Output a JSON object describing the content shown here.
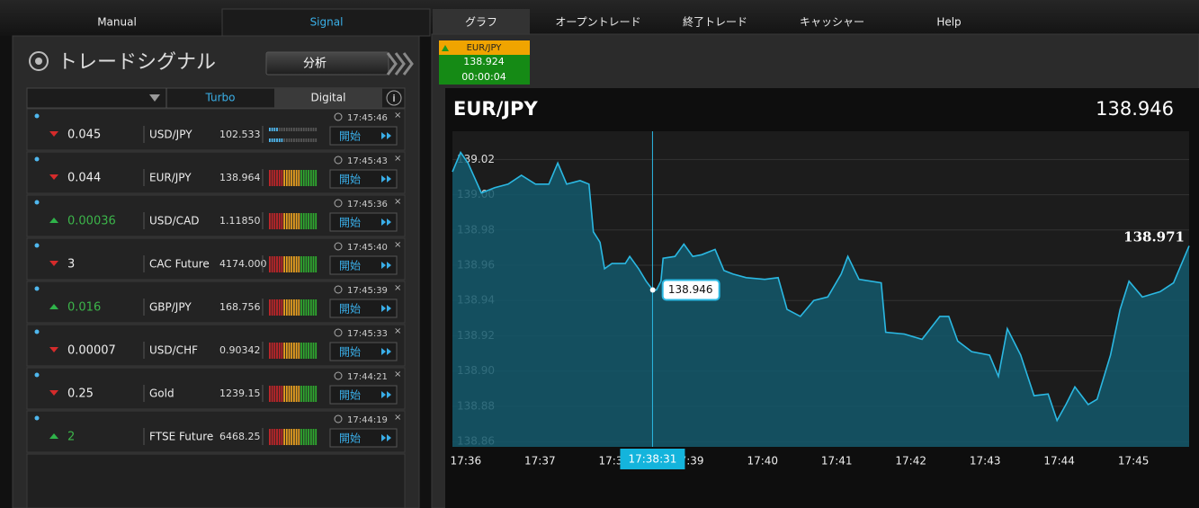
{
  "nav": {
    "tabs": [
      "Manual",
      "Signal",
      "グラフ",
      "オープントレード",
      "終了トレード",
      "キャッシャー",
      "Help"
    ]
  },
  "signal_panel": {
    "title": "トレードシグナル",
    "analyze_button": "分析",
    "columns": [
      "Turbo",
      "Digital"
    ],
    "button_label": "開始",
    "rows": [
      {
        "direction": "down",
        "change": "0.045",
        "asset": "USD/JPY",
        "price": "102.533",
        "time": "17:45:46"
      },
      {
        "direction": "down",
        "change": "0.044",
        "asset": "EUR/JPY",
        "price": "138.964",
        "time": "17:45:43"
      },
      {
        "direction": "up",
        "change": "0.00036",
        "asset": "USD/CAD",
        "price": "1.11850",
        "time": "17:45:36"
      },
      {
        "direction": "down",
        "change": "3",
        "asset": "CAC Future",
        "price": "4174.000",
        "time": "17:45:40"
      },
      {
        "direction": "up",
        "change": "0.016",
        "asset": "GBP/JPY",
        "price": "168.756",
        "time": "17:45:39"
      },
      {
        "direction": "down",
        "change": "0.00007",
        "asset": "USD/CHF",
        "price": "0.90342",
        "time": "17:45:33"
      },
      {
        "direction": "down",
        "change": "0.25",
        "asset": "Gold",
        "price": "1239.15",
        "time": "17:44:21"
      },
      {
        "direction": "up",
        "change": "2",
        "asset": "FTSE Future",
        "price": "6468.25",
        "time": "17:44:19"
      }
    ]
  },
  "ticker": {
    "asset": "EUR/JPY",
    "price": "138.924",
    "countdown": "00:00:04"
  },
  "chart_data": {
    "type": "line",
    "title": "EUR/JPY",
    "price": 138.946,
    "color": "#2bb8e2",
    "fill": "#13586b",
    "grid": true,
    "x": [
      1055.82,
      1055.93,
      1056.03,
      1056.21,
      1056.39,
      1056.57,
      1056.75,
      1056.94,
      1057.12,
      1057.24,
      1057.36,
      1057.54,
      1057.66,
      1057.72,
      1057.81,
      1057.87,
      1057.97,
      1058.15,
      1058.21,
      1058.33,
      1058.43,
      1058.52,
      1058.57,
      1058.63,
      1058.66,
      1058.82,
      1058.94,
      1059.06,
      1059.18,
      1059.36,
      1059.48,
      1059.6,
      1059.78,
      1060.03,
      1060.21,
      1060.33,
      1060.51,
      1060.69,
      1060.88,
      1061.06,
      1061.15,
      1061.3,
      1061.6,
      1061.66,
      1061.91,
      1062.15,
      1062.39,
      1062.51,
      1062.63,
      1062.82,
      1063.06,
      1063.18,
      1063.3,
      1063.48,
      1063.66,
      1063.85,
      1063.97,
      1064.09,
      1064.21,
      1064.39,
      1064.51,
      1064.69,
      1064.82,
      1064.94,
      1065.12,
      1065.36,
      1065.54,
      1065.75
    ],
    "values": [
      139.013,
      139.024,
      139.018,
      139.001,
      139.004,
      139.006,
      139.011,
      139.006,
      139.006,
      139.018,
      139.006,
      139.008,
      139.006,
      138.979,
      138.973,
      138.958,
      138.961,
      138.961,
      138.965,
      138.958,
      138.951,
      138.946,
      138.946,
      138.951,
      138.964,
      138.965,
      138.972,
      138.965,
      138.966,
      138.969,
      138.957,
      138.955,
      138.953,
      138.952,
      138.953,
      138.935,
      138.931,
      138.94,
      138.942,
      138.955,
      138.965,
      138.952,
      138.95,
      138.922,
      138.921,
      138.918,
      138.931,
      138.931,
      138.917,
      138.911,
      138.909,
      138.897,
      138.924,
      138.909,
      138.886,
      138.887,
      138.872,
      138.881,
      138.891,
      138.881,
      138.884,
      138.909,
      138.935,
      138.951,
      138.942,
      138.945,
      138.95,
      138.971
    ],
    "xlim": [
      1055.82,
      1065.75
    ],
    "xticks": [
      {
        "value": 1056,
        "label": "17:36"
      },
      {
        "value": 1057,
        "label": "17:37"
      },
      {
        "value": 1058,
        "label": "17:38"
      },
      {
        "value": 1059,
        "label": "17:39"
      },
      {
        "value": 1060,
        "label": "17:40"
      },
      {
        "value": 1061,
        "label": "17:41"
      },
      {
        "value": 1062,
        "label": "17:42"
      },
      {
        "value": 1063,
        "label": "17:43"
      },
      {
        "value": 1064,
        "label": "17:44"
      },
      {
        "value": 1065,
        "label": "17:45"
      }
    ],
    "ylim": [
      138.857,
      139.036
    ],
    "yticks": [
      138.86,
      138.88,
      {
        "value": 138.9,
        "label": "138.90"
      },
      138.92,
      138.94,
      138.96,
      138.98,
      {
        "value": 139,
        "label": "139.00"
      },
      139.02
    ],
    "crosshair": {
      "value": 1058.517,
      "label": "17:38:31"
    }
  }
}
